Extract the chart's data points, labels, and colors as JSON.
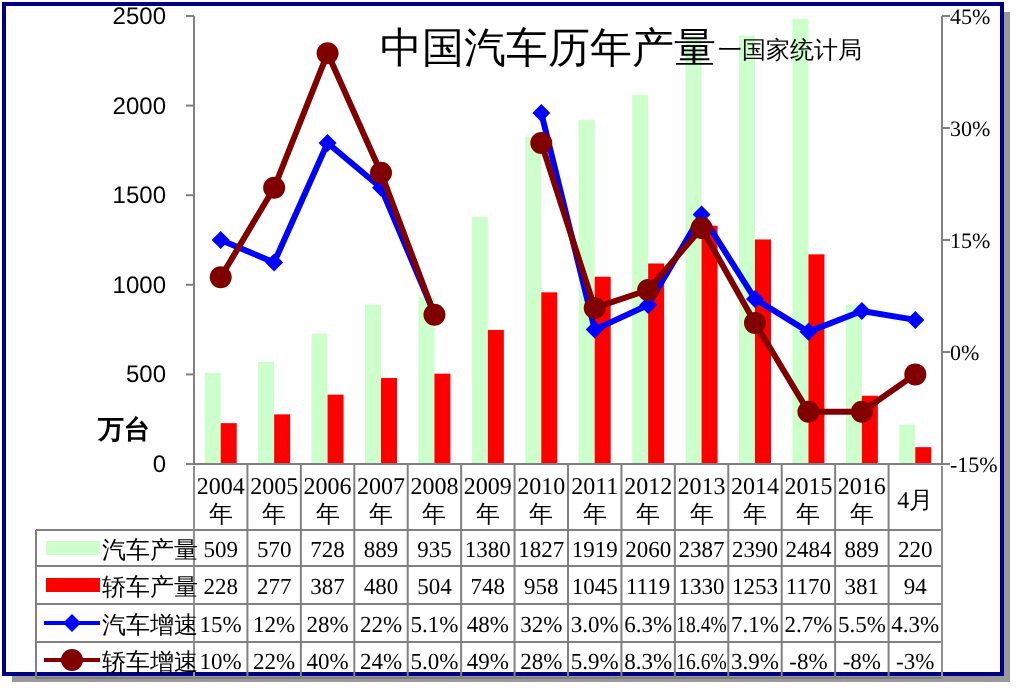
{
  "chart_data": {
    "type": "bar",
    "title": "中国汽车历年产量",
    "subtitle": "一国家统计局",
    "ylabel": "万台",
    "categories": [
      "2004年",
      "2005年",
      "2006年",
      "2007年",
      "2008年",
      "2009年",
      "2010年",
      "2011年",
      "2012年",
      "2013年",
      "2014年",
      "2015年",
      "2016年",
      "4月"
    ],
    "series": [
      {
        "name": "汽车产量",
        "color": "#ccffcc",
        "values": [
          509,
          570,
          728,
          889,
          935,
          1380,
          1827,
          1919,
          2060,
          2387,
          2390,
          2484,
          889,
          220
        ],
        "value_labels": [
          "509",
          "570",
          "728",
          "889",
          "935",
          "1380",
          "1827",
          "1919",
          "2060",
          "2387",
          "2390",
          "2484",
          "889",
          "220"
        ]
      },
      {
        "name": "轿车产量",
        "color": "#ff0000",
        "values": [
          228,
          277,
          387,
          480,
          504,
          748,
          958,
          1045,
          1119,
          1330,
          1253,
          1170,
          381,
          94
        ],
        "value_labels": [
          "228",
          "277",
          "387",
          "480",
          "504",
          "748",
          "958",
          "1045",
          "1119",
          "1330",
          "1253",
          "1170",
          "381",
          "94"
        ]
      },
      {
        "name": "汽车增速",
        "type": "line",
        "axis": "y2",
        "color": "#0000ff",
        "marker": "diamond",
        "values": [
          15,
          12,
          28,
          22,
          5.1,
          null,
          32,
          3.0,
          6.3,
          18.4,
          7.1,
          2.7,
          5.5,
          4.3
        ],
        "value_labels": [
          "15%",
          "12%",
          "28%",
          "22%",
          "5.1%",
          "48%",
          "32%",
          "3.0%",
          "6.3%",
          "18.4%",
          "7.1%",
          "2.7%",
          "5.5%",
          "4.3%"
        ]
      },
      {
        "name": "轿车增速",
        "type": "line",
        "axis": "y2",
        "color": "#800000",
        "marker": "circle",
        "values": [
          10,
          22,
          40,
          24,
          5.0,
          null,
          28,
          5.9,
          8.3,
          16.6,
          3.9,
          -8,
          -8,
          -3
        ],
        "value_labels": [
          "10%",
          "22%",
          "40%",
          "24%",
          "5.0%",
          "49%",
          "28%",
          "5.9%",
          "8.3%",
          "16.6%",
          "3.9%",
          "-8%",
          "-8%",
          "-3%"
        ]
      }
    ],
    "ylim": [
      0,
      2500
    ],
    "yticks": [
      0,
      500,
      1000,
      1500,
      2000,
      2500
    ],
    "y2lim": [
      -15,
      45
    ],
    "y2ticks": [
      {
        "value": -15,
        "label": "-15%"
      },
      {
        "value": 0,
        "label": "0%"
      },
      {
        "value": 15,
        "label": "15%"
      },
      {
        "value": 30,
        "label": "30%"
      },
      {
        "value": 45,
        "label": "45%"
      }
    ],
    "legend": "bottom left",
    "grid": false
  }
}
